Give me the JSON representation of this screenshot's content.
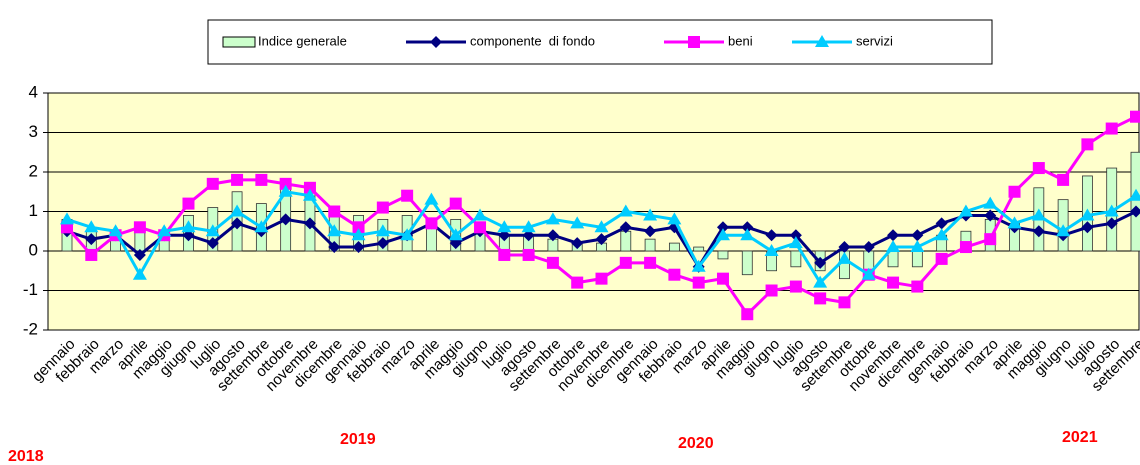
{
  "chart_data": {
    "type": "bar-line",
    "categories": [
      "gennaio",
      "febbraio",
      "marzo",
      "aprile",
      "maggio",
      "giugno",
      "luglio",
      "agosto",
      "settembre",
      "ottobre",
      "novembre",
      "dicembre",
      "gennaio",
      "febbraio",
      "marzo",
      "aprile",
      "maggio",
      "giugno",
      "luglio",
      "agosto",
      "settembre",
      "ottobre",
      "novembre",
      "dicembre",
      "gennaio",
      "febbraio",
      "marzo",
      "aprile",
      "maggio",
      "giugno",
      "luglio",
      "agosto",
      "settembre",
      "ottobre",
      "novembre",
      "dicembre",
      "gennaio",
      "febbraio",
      "marzo",
      "aprile",
      "maggio",
      "giugno",
      "luglio",
      "agosto",
      "settembre"
    ],
    "series": [
      {
        "name": "Indice generale",
        "kind": "bar",
        "color": "#ccffcc",
        "values": [
          0.8,
          0.5,
          0.5,
          0.5,
          0.5,
          0.9,
          1.1,
          1.5,
          1.2,
          1.6,
          1.6,
          1.1,
          0.9,
          0.8,
          0.9,
          0.8,
          0.8,
          0.7,
          0.4,
          0.4,
          0.3,
          0.2,
          0.2,
          0.5,
          0.3,
          0.2,
          0.1,
          -0.2,
          -0.6,
          -0.5,
          -0.4,
          -0.5,
          -0.7,
          -0.6,
          -0.4,
          -0.4,
          0.4,
          0.5,
          0.8,
          0.7,
          1.6,
          1.3,
          1.9,
          2.1,
          2.5
        ]
      },
      {
        "name": "componente  di fondo",
        "kind": "line",
        "marker": "diamond",
        "color": "#000080",
        "values": [
          0.5,
          0.3,
          0.4,
          -0.1,
          0.4,
          0.4,
          0.2,
          0.7,
          0.5,
          0.8,
          0.7,
          0.1,
          0.1,
          0.2,
          0.4,
          0.7,
          0.2,
          0.5,
          0.4,
          0.4,
          0.4,
          0.2,
          0.3,
          0.6,
          0.5,
          0.6,
          -0.4,
          0.6,
          0.6,
          0.4,
          0.4,
          -0.3,
          0.1,
          0.1,
          0.4,
          0.4,
          0.7,
          0.9,
          0.9,
          0.6,
          0.5,
          0.4,
          0.6,
          0.7,
          1.0
        ]
      },
      {
        "name": "beni",
        "kind": "line",
        "marker": "square",
        "color": "#ff00ff",
        "values": [
          0.6,
          -0.1,
          0.4,
          0.6,
          0.4,
          1.2,
          1.7,
          1.8,
          1.8,
          1.7,
          1.6,
          1.0,
          0.6,
          1.1,
          1.4,
          0.7,
          1.2,
          0.6,
          -0.1,
          -0.1,
          -0.3,
          -0.8,
          -0.7,
          -0.3,
          -0.3,
          -0.6,
          -0.8,
          -0.7,
          -1.6,
          -1.0,
          -0.9,
          -1.2,
          -1.3,
          -0.6,
          -0.8,
          -0.9,
          -0.2,
          0.1,
          0.3,
          1.5,
          2.1,
          1.8,
          2.7,
          3.1,
          3.4
        ]
      },
      {
        "name": "servizi",
        "kind": "line",
        "marker": "triangle",
        "color": "#00ccff",
        "values": [
          0.8,
          0.6,
          0.5,
          -0.6,
          0.5,
          0.6,
          0.5,
          1.0,
          0.6,
          1.5,
          1.4,
          0.5,
          0.4,
          0.5,
          0.4,
          1.3,
          0.4,
          0.9,
          0.6,
          0.6,
          0.8,
          0.7,
          0.6,
          1.0,
          0.9,
          0.8,
          -0.4,
          0.4,
          0.4,
          0.0,
          0.2,
          -0.8,
          -0.2,
          -0.6,
          0.1,
          0.1,
          0.4,
          1.0,
          1.2,
          0.7,
          0.9,
          0.5,
          0.9,
          1.0,
          1.4
        ]
      }
    ],
    "ylim": [
      -2,
      4
    ],
    "yticks": [
      -2,
      -1,
      0,
      1,
      2,
      3,
      4
    ],
    "grid": true,
    "annotations": [
      "2018",
      "2019",
      "2020",
      "2021"
    ],
    "annotation_color": "#ff0000",
    "plot_background": "#ffffcc"
  }
}
